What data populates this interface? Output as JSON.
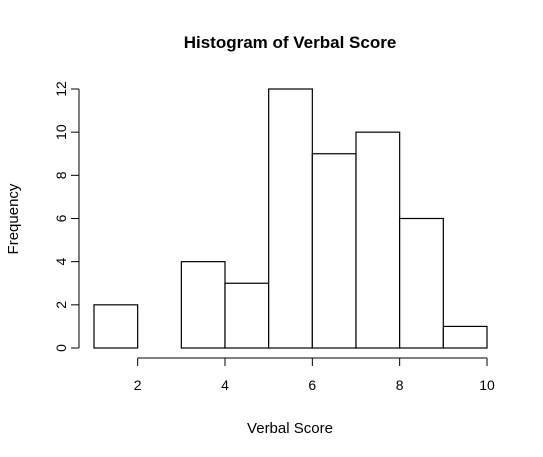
{
  "chart_data": {
    "type": "bar",
    "title": "Histogram of Verbal Score",
    "xlabel": "Verbal Score",
    "ylabel": "Frequency",
    "bins": [
      {
        "x0": 1,
        "x1": 2,
        "count": 2
      },
      {
        "x0": 2,
        "x1": 3,
        "count": 0
      },
      {
        "x0": 3,
        "x1": 4,
        "count": 4
      },
      {
        "x0": 4,
        "x1": 5,
        "count": 3
      },
      {
        "x0": 5,
        "x1": 6,
        "count": 12
      },
      {
        "x0": 6,
        "x1": 7,
        "count": 9
      },
      {
        "x0": 7,
        "x1": 8,
        "count": 10
      },
      {
        "x0": 8,
        "x1": 9,
        "count": 6
      },
      {
        "x0": 9,
        "x1": 10,
        "count": 1
      }
    ],
    "xlim": [
      1,
      10
    ],
    "ylim": [
      0,
      12
    ],
    "x_ticks": [
      2,
      4,
      6,
      8,
      10
    ],
    "y_ticks": [
      0,
      2,
      4,
      6,
      8,
      10,
      12
    ],
    "grid": false,
    "legend": "none",
    "colors": {
      "bar_fill": "#ffffff",
      "bar_stroke": "#000000"
    }
  }
}
